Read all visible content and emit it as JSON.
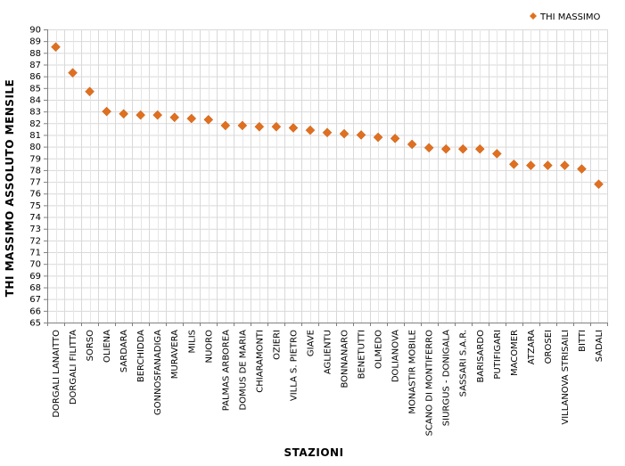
{
  "chart_data": {
    "type": "scatter",
    "xlabel": "STAZIONI",
    "ylabel": "THI MASSIMO ASSOLUTO MENSILE",
    "ylim": [
      65,
      90
    ],
    "ytick_step": 1,
    "grid": true,
    "legend_position": "top-right",
    "series": [
      {
        "name": "THI MASSIMO",
        "color": "#E07020",
        "marker": "diamond",
        "values": [
          88.5,
          86.3,
          84.7,
          83.0,
          82.8,
          82.7,
          82.7,
          82.5,
          82.4,
          82.3,
          81.8,
          81.8,
          81.7,
          81.7,
          81.6,
          81.4,
          81.2,
          81.1,
          81.0,
          80.8,
          80.7,
          80.2,
          79.9,
          79.8,
          79.8,
          79.8,
          79.4,
          78.5,
          78.4,
          78.4,
          78.4,
          78.1,
          76.8
        ]
      }
    ],
    "categories": [
      "DORGALI LANAITTO",
      "DORGALI FILITTA",
      "SORSO",
      "OLIENA",
      "SARDARA",
      "BERCHIDDA",
      "GONNOSFANADIGA",
      "MURAVERA",
      "MILIS",
      "NUORO",
      "PALMAS ARBOREA",
      "DOMUS DE MARIA",
      "CHIARAMONTI",
      "OZIERI",
      "VILLA S. PIETRO",
      "GIAVE",
      "AGLIENTU",
      "BONNANARO",
      "BENETUTTI",
      "OLMEDO",
      "DOLIANOVA",
      "MONASTIR MOBILE",
      "SCANO DI MONTIFERRO",
      "SIURGUS - DONIGALA",
      "SASSARI S.A.R.",
      "BARISARDO",
      "PUTIFIGARI",
      "MACOMER",
      "ATZARA",
      "OROSEI",
      "VILLANOVA STRISAILI",
      "BITTI",
      "SADALI"
    ]
  }
}
